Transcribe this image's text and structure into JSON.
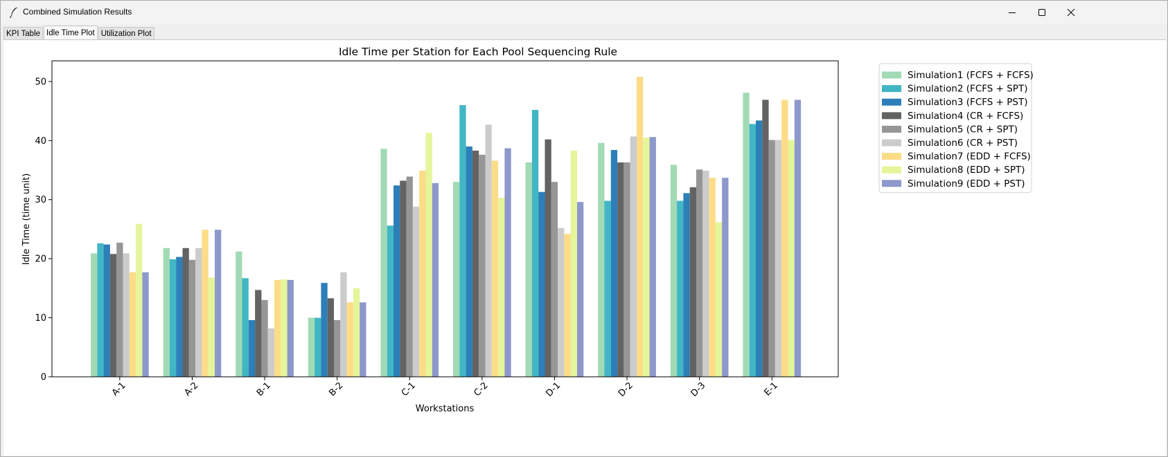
{
  "window": {
    "title": "Combined Simulation Results",
    "icon": "feather-icon"
  },
  "tabs": [
    {
      "label": "KPI Table",
      "active": false
    },
    {
      "label": "Idle Time Plot",
      "active": true
    },
    {
      "label": "Utilization Plot",
      "active": false
    }
  ],
  "chart_data": {
    "type": "bar",
    "title": "Idle Time per Station for Each Pool Sequencing Rule",
    "xlabel": "Workstations",
    "ylabel": "Idle Time (time unit)",
    "ylim": [
      0,
      53.5
    ],
    "yticks": [
      0,
      10,
      20,
      30,
      40,
      50
    ],
    "grid": false,
    "legend_position": "outside-right-top",
    "categories": [
      "A-1",
      "A-2",
      "B-1",
      "B-2",
      "C-1",
      "C-2",
      "D-1",
      "D-2",
      "D-3",
      "E-1"
    ],
    "series": [
      {
        "name": "Simulation1 (FCFS + FCFS)",
        "color": "#a1dab4",
        "values": [
          20.9,
          21.8,
          21.2,
          10.0,
          38.6,
          33.0,
          36.3,
          39.6,
          35.9,
          48.1
        ]
      },
      {
        "name": "Simulation2 (FCFS + SPT)",
        "color": "#41b6c4",
        "values": [
          22.6,
          19.9,
          16.7,
          10.0,
          25.6,
          46.0,
          45.2,
          29.8,
          29.8,
          42.8
        ]
      },
      {
        "name": "Simulation3 (FCFS + PST)",
        "color": "#2c7fb8",
        "values": [
          22.4,
          20.3,
          9.6,
          15.9,
          32.4,
          39.0,
          31.3,
          38.4,
          31.1,
          43.4
        ]
      },
      {
        "name": "Simulation4 (CR + FCFS)",
        "color": "#636363",
        "values": [
          20.8,
          21.8,
          14.7,
          13.3,
          33.2,
          38.3,
          40.2,
          36.3,
          32.1,
          46.9
        ]
      },
      {
        "name": "Simulation5 (CR + SPT)",
        "color": "#969696",
        "values": [
          22.7,
          19.8,
          13.0,
          9.6,
          33.9,
          37.6,
          33.0,
          36.3,
          35.1,
          40.1
        ]
      },
      {
        "name": "Simulation6 (CR + PST)",
        "color": "#cccccc",
        "values": [
          20.9,
          21.8,
          8.2,
          17.7,
          28.8,
          42.7,
          25.2,
          40.7,
          34.9,
          40.1
        ]
      },
      {
        "name": "Simulation7 (EDD + FCFS)",
        "color": "#fddc87",
        "values": [
          17.7,
          24.9,
          16.4,
          12.6,
          34.9,
          36.6,
          24.2,
          50.8,
          33.7,
          46.9
        ]
      },
      {
        "name": "Simulation8 (EDD + SPT)",
        "color": "#e5f59a",
        "values": [
          25.9,
          16.8,
          16.5,
          15.0,
          41.3,
          30.3,
          38.3,
          40.5,
          26.2,
          40.1
        ]
      },
      {
        "name": "Simulation9 (EDD + PST)",
        "color": "#8d98cb",
        "values": [
          17.7,
          24.9,
          16.4,
          12.6,
          32.8,
          38.7,
          29.6,
          40.6,
          33.7,
          46.9
        ]
      }
    ]
  }
}
